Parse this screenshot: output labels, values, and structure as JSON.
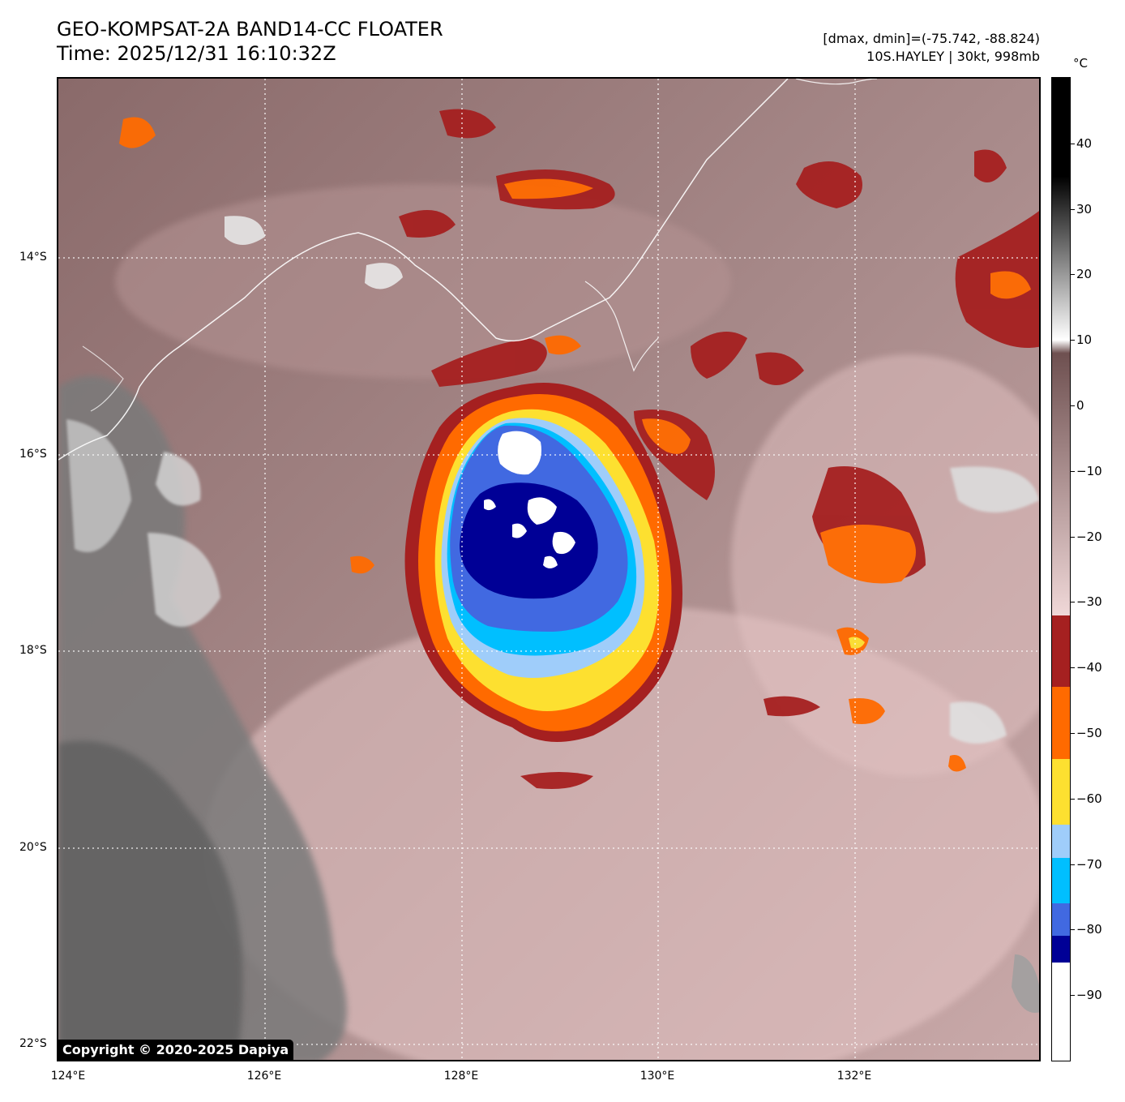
{
  "header": {
    "title": "GEO-KOMPSAT-2A BAND14-CC FLOATER",
    "time": "Time: 2025/12/31 16:10:32Z",
    "range": "[dmax, dmin]=(-75.742, -88.824)",
    "storm": "10S.HAYLEY | 30kt, 998mb"
  },
  "map": {
    "lat_labels": [
      "14°S",
      "16°S",
      "18°S",
      "20°S",
      "22°S"
    ],
    "lon_labels": [
      "124°E",
      "126°E",
      "128°E",
      "130°E",
      "132°E"
    ],
    "lat_range": [
      -22.2,
      -12.2
    ],
    "lon_range": [
      124.0,
      134.0
    ],
    "gridlines": true,
    "storm_center": {
      "lon": 128.7,
      "lat": -17.1
    }
  },
  "colorbar": {
    "unit": "°C",
    "ticks": [
      "40",
      "30",
      "20",
      "10",
      "0",
      "−10",
      "−20",
      "−30",
      "−40",
      "−50",
      "−60",
      "−70",
      "−80",
      "−90"
    ],
    "range": [
      -100,
      50
    ],
    "segments": [
      {
        "from": -100,
        "to": -85,
        "color": "#ffffff"
      },
      {
        "from": -85,
        "to": -81,
        "color": "#000096"
      },
      {
        "from": -81,
        "to": -76,
        "color": "#4169e1"
      },
      {
        "from": -76,
        "to": -69,
        "color": "#00bfff"
      },
      {
        "from": -69,
        "to": -64,
        "color": "#9fcdfa"
      },
      {
        "from": -64,
        "to": -54,
        "color": "#fde030"
      },
      {
        "from": -54,
        "to": -43,
        "color": "#ff6a00"
      },
      {
        "from": -43,
        "to": -32,
        "color": "#a52020"
      }
    ]
  },
  "copyright": "Copyright © 2020-2025 Dapiya"
}
